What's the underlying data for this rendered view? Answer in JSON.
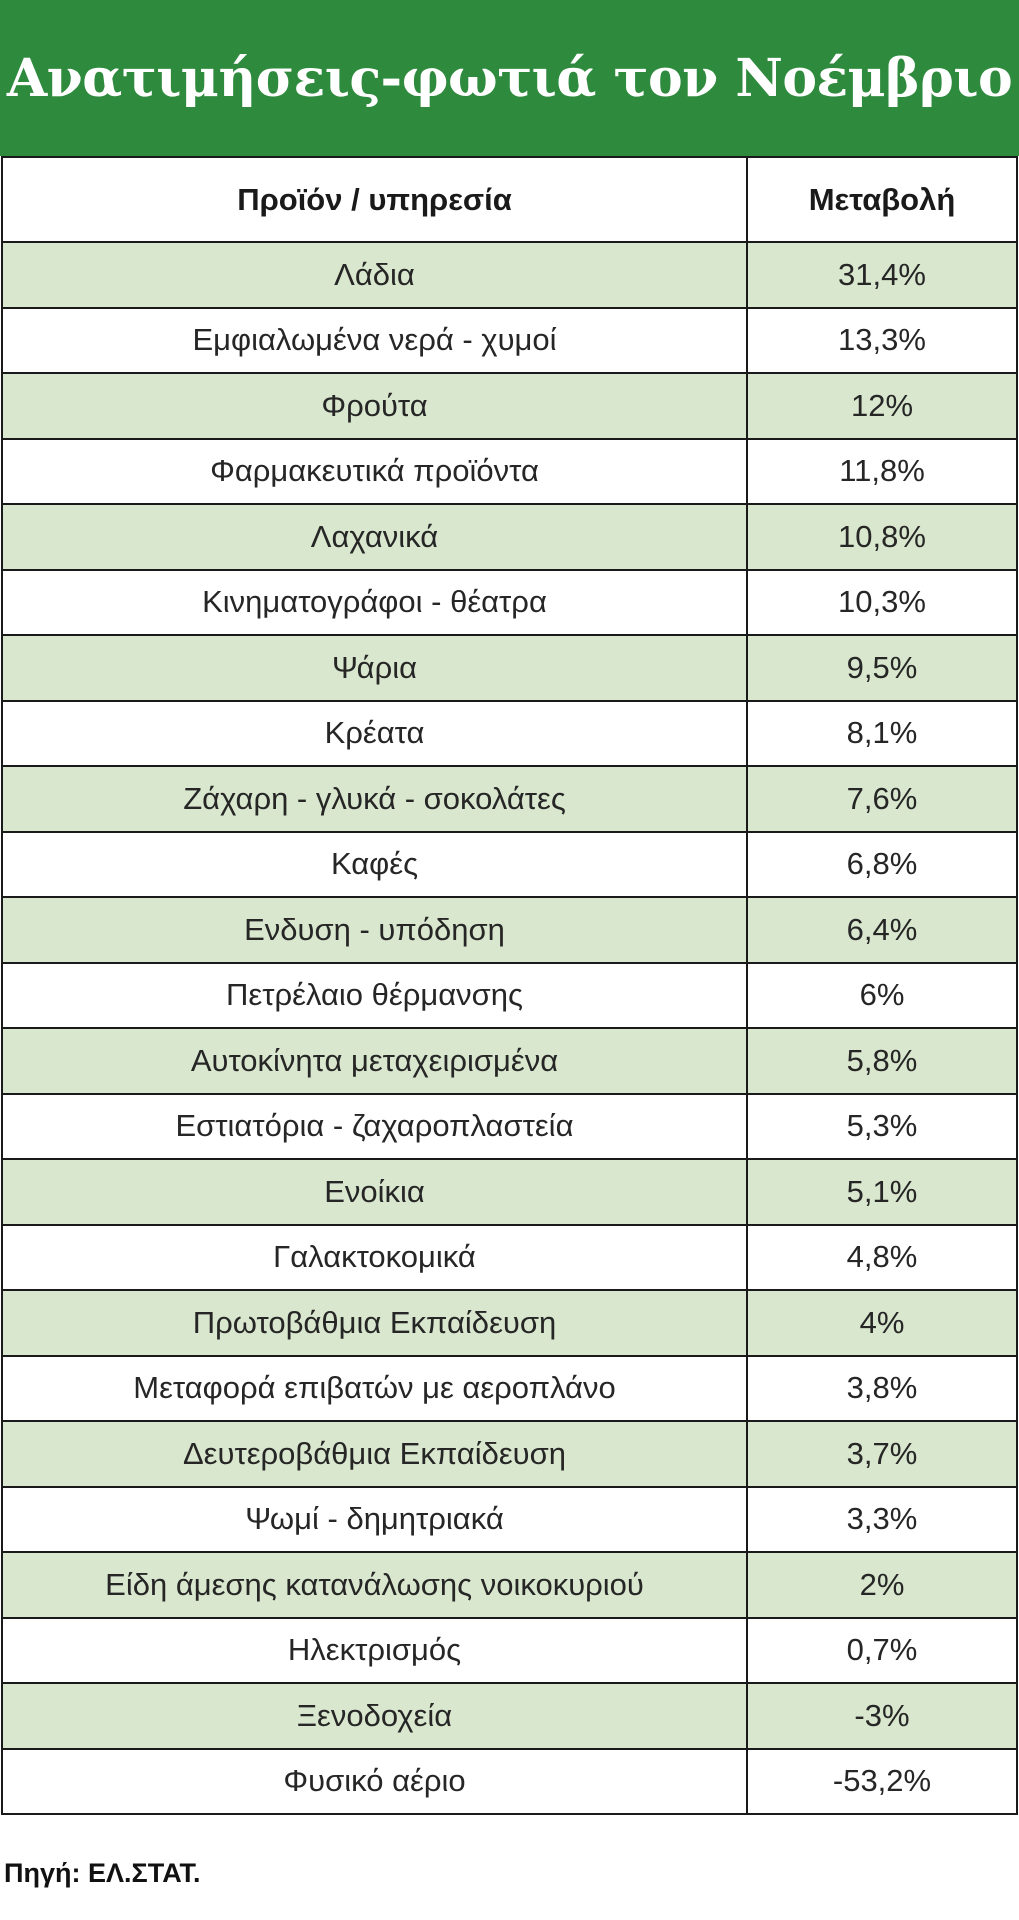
{
  "title": "Ανατιμήσεις-φωτιά τον Νοέμβριο",
  "table": {
    "headers": [
      "Προϊόν / υπηρεσία",
      "Μεταβολή"
    ],
    "rows": [
      [
        "Λάδια",
        "31,4%"
      ],
      [
        "Εμφιαλωμένα νερά - χυμοί",
        "13,3%"
      ],
      [
        "Φρούτα",
        "12%"
      ],
      [
        "Φαρμακευτικά προϊόντα",
        "11,8%"
      ],
      [
        "Λαχανικά",
        "10,8%"
      ],
      [
        "Κινηματογράφοι - θέατρα",
        "10,3%"
      ],
      [
        "Ψάρια",
        "9,5%"
      ],
      [
        "Κρέατα",
        "8,1%"
      ],
      [
        "Ζάχαρη - γλυκά - σοκολάτες",
        "7,6%"
      ],
      [
        "Καφές",
        "6,8%"
      ],
      [
        "Ενδυση - υπόδηση",
        "6,4%"
      ],
      [
        "Πετρέλαιο θέρμανσης",
        "6%"
      ],
      [
        "Αυτοκίνητα μεταχειρισμένα",
        "5,8%"
      ],
      [
        "Εστιατόρια - ζαχαροπλαστεία",
        "5,3%"
      ],
      [
        "Ενοίκια",
        "5,1%"
      ],
      [
        "Γαλακτοκομικά",
        "4,8%"
      ],
      [
        "Πρωτοβάθμια Εκπαίδευση",
        "4%"
      ],
      [
        "Μεταφορά επιβατών με αεροπλάνο",
        "3,8%"
      ],
      [
        "Δευτεροβάθμια Εκπαίδευση",
        "3,7%"
      ],
      [
        "Ψωμί - δημητριακά",
        "3,3%"
      ],
      [
        "Είδη άμεσης κατανάλωσης νοικοκυριού",
        "2%"
      ],
      [
        "Ηλεκτρισμός",
        "0,7%"
      ],
      [
        "Ξενοδοχεία",
        "-3%"
      ],
      [
        "Φυσικό αέριο",
        "-53,2%"
      ]
    ]
  },
  "source": "Πηγή: ΕΛ.ΣΤΑΤ.",
  "colors": {
    "header_bg": "#2e8a3c",
    "stripe": "#d8e7cd"
  }
}
